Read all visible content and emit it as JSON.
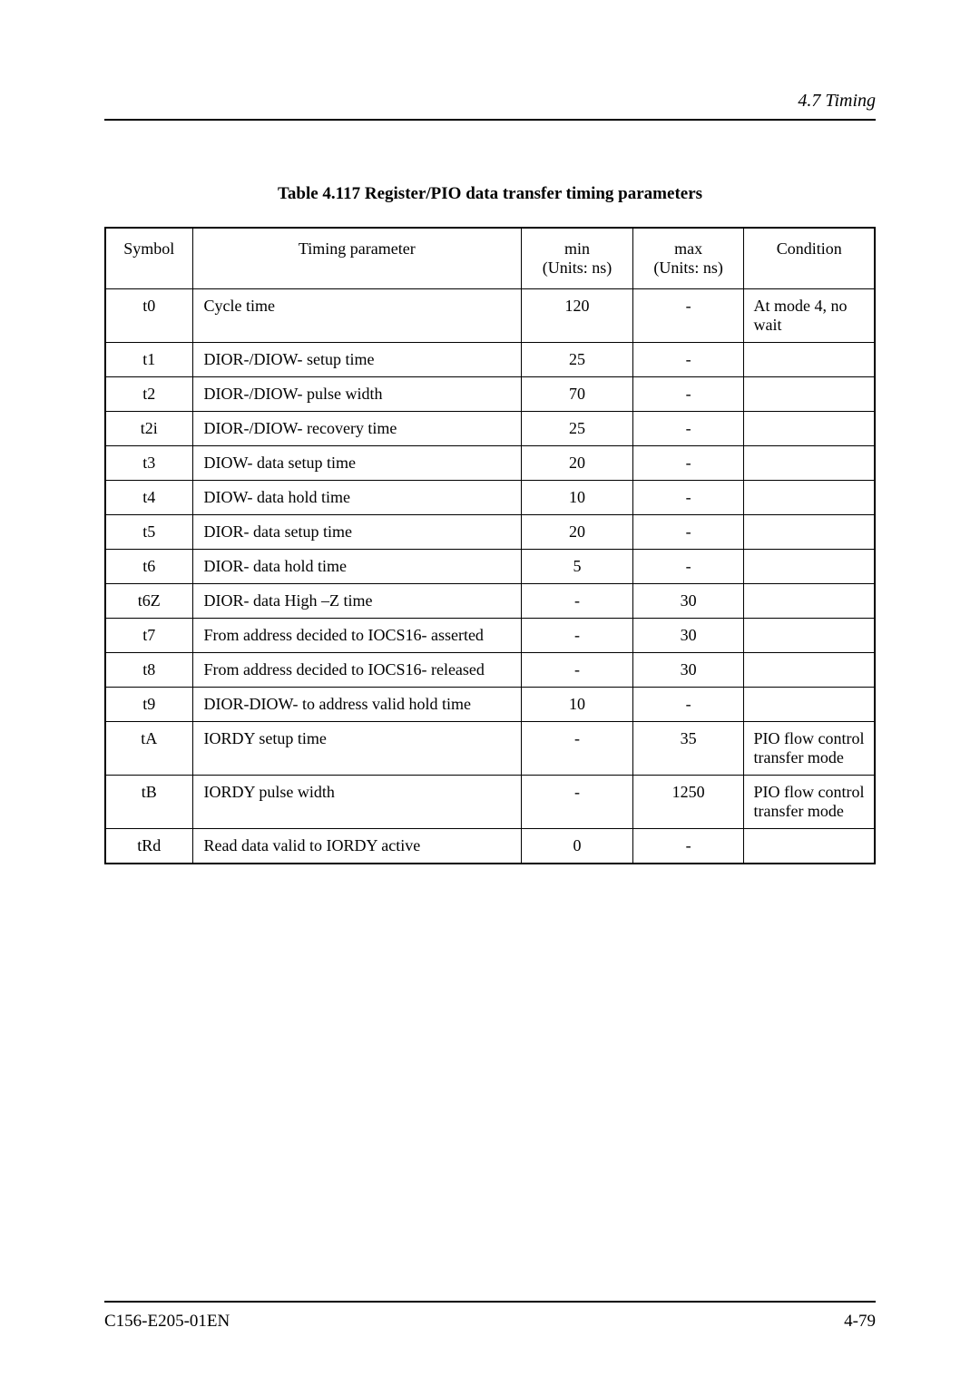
{
  "header": {
    "section_title": "4.7  Timing"
  },
  "table": {
    "title": "Table 4.117  Register/PIO data transfer timing parameters",
    "columns": {
      "symbol": "Symbol",
      "timing_parameter": "Timing parameter",
      "min_label": "min",
      "min_units": "(Units:  ns)",
      "max_label": "max",
      "max_units": "(Units:  ns)",
      "condition": "Condition"
    },
    "rows": [
      {
        "symbol": "t0",
        "param": "Cycle time",
        "min": "120",
        "max": "-",
        "condition": "At mode 4, no wait"
      },
      {
        "symbol": "t1",
        "param": "DIOR-/DIOW- setup time",
        "min": "25",
        "max": "-",
        "condition": ""
      },
      {
        "symbol": "t2",
        "param": "DIOR-/DIOW- pulse width",
        "min": "70",
        "max": "-",
        "condition": ""
      },
      {
        "symbol": "t2i",
        "param": "DIOR-/DIOW- recovery time",
        "min": "25",
        "max": "-",
        "condition": ""
      },
      {
        "symbol": "t3",
        "param": "DIOW- data setup time",
        "min": "20",
        "max": "-",
        "condition": ""
      },
      {
        "symbol": "t4",
        "param": "DIOW- data hold time",
        "min": "10",
        "max": "-",
        "condition": ""
      },
      {
        "symbol": "t5",
        "param": "DIOR- data setup time",
        "min": "20",
        "max": "-",
        "condition": ""
      },
      {
        "symbol": "t6",
        "param": "DIOR- data hold time",
        "min": "5",
        "max": "-",
        "condition": ""
      },
      {
        "symbol": "t6Z",
        "param": "DIOR- data High –Z time",
        "min": "-",
        "max": "30",
        "condition": ""
      },
      {
        "symbol": "t7",
        "param": "From address decided to IOCS16- asserted",
        "min": "-",
        "max": "30",
        "condition": ""
      },
      {
        "symbol": "t8",
        "param": "From address decided to IOCS16- released",
        "min": "-",
        "max": "30",
        "condition": ""
      },
      {
        "symbol": "t9",
        "param": "DIOR-DIOW- to address valid hold time",
        "min": "10",
        "max": "-",
        "condition": ""
      },
      {
        "symbol": "tA",
        "param": "IORDY setup time",
        "min": "-",
        "max": "35",
        "condition": "PIO flow control transfer mode"
      },
      {
        "symbol": "tB",
        "param": "IORDY pulse width",
        "min": "-",
        "max": "1250",
        "condition": "PIO flow control transfer mode"
      },
      {
        "symbol": "tRd",
        "param": "Read data valid to IORDY active",
        "min": "0",
        "max": "-",
        "condition": ""
      }
    ]
  },
  "footer": {
    "doc_id": "C156-E205-01EN",
    "page_num": "4-79"
  }
}
